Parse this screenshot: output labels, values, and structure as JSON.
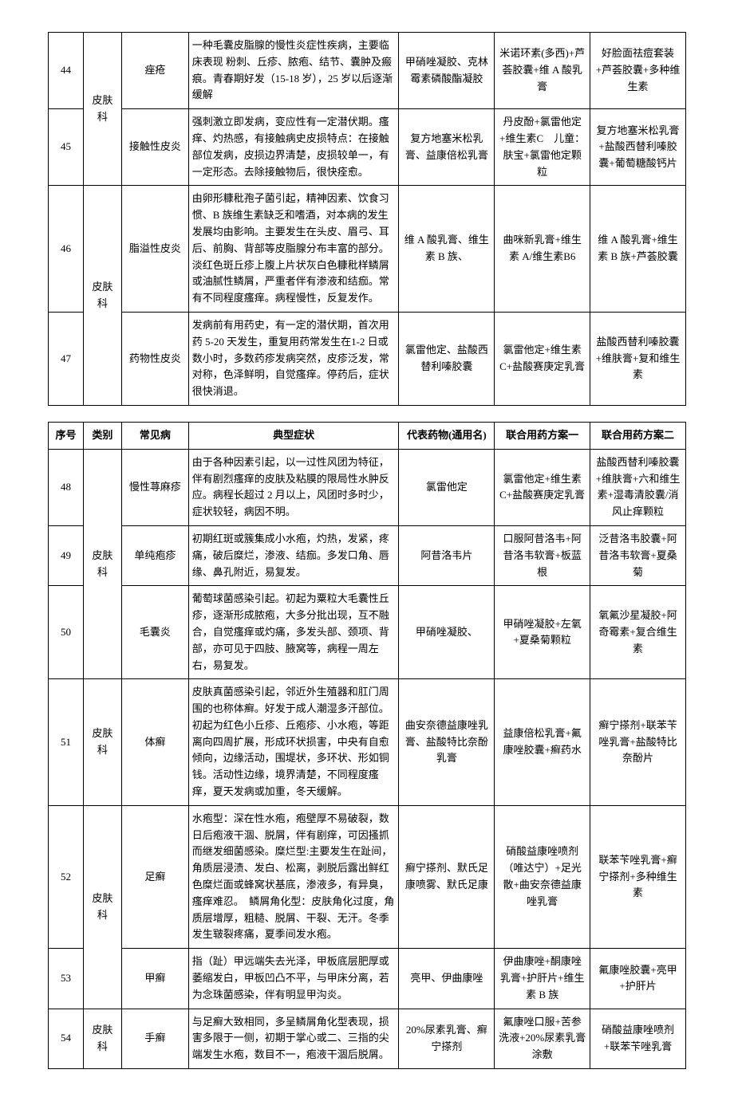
{
  "headers": {
    "num": "序号",
    "cat": "类别",
    "disease": "常见病",
    "symptom": "典型症状",
    "drug": "代表药物(通用名)",
    "plan1": "联合用药方案一",
    "plan2": "联合用药方案二"
  },
  "table1": {
    "category": "皮肤科",
    "category2": "皮肤科",
    "rows": [
      {
        "num": "44",
        "disease": "痤疮",
        "symptom": "一种毛囊皮脂腺的慢性炎症性疾病，主要临床表现 粉刺、丘疹、脓疱、结节、囊肿及瘢痕。青春期好发（15-18 岁），25 岁以后逐渐缓解",
        "drug": "甲硝唑凝胶、克林霉素磷酸酯凝胶",
        "plan1": "米诺环素(多西)+芦荟胶囊+维 A 酸乳膏",
        "plan2": "好脸面祛痘套装+芦荟胶囊+多种维生素"
      },
      {
        "num": "45",
        "disease": "接触性皮炎",
        "symptom": "强刺激立即发病，变应性有一定潜伏期。瘙痒、灼热感，有接触病史皮损特点：在接触部位发病，皮损边界清楚，皮损较单一，有一定形态。去除接触物后，很快痊愈。",
        "drug": "复方地塞米松乳膏、益康倍松乳膏",
        "plan1": "丹皮酚+氯雷他定+维生素C　儿童：肤宝+氯雷他定颗粒",
        "plan2": "复方地塞米松乳膏+盐酸西替利嗪胶囊+葡萄糖酸钙片"
      },
      {
        "num": "46",
        "disease": "脂溢性皮炎",
        "symptom": "由卵形糠秕孢子菌引起，精神因素、饮食习惯、B 族维生素缺乏和嗜酒，对本病的发生发展均由影响。主要发生在头皮、眉弓、耳后、前胸、背部等皮脂腺分布丰富的部分。淡红色斑丘疹上腹上片状灰白色糠秕样鳞屑或油腻性鳞屑，严重者伴有渗液和结痂。常有不同程度瘙痒。病程慢性，反复发作。",
        "drug": "维 A 酸乳膏、维生素 B 族、",
        "plan1": "曲咪新乳膏+维生素 A/维生素B6",
        "plan2": "维 A 酸乳膏+维生素 B 族+芦荟胶囊"
      },
      {
        "num": "47",
        "disease": "药物性皮炎",
        "symptom": "发病前有用药史，有一定的潜伏期，首次用药 5-20 天发生，重复用药常发生在1-2 日或数小时，多数药疹发病突然，皮疹泛发，常对称，色泽鲜明，自觉瘙痒。停药后，症状很快消退。",
        "drug": "氯雷他定、盐酸西替利嗪胶囊",
        "plan1": "氯雷他定+维生素 C+盐酸赛庚定乳膏",
        "plan2": "盐酸西替利嗪胶囊+维肤膏+复和维生素"
      }
    ]
  },
  "table2": {
    "category1": "皮肤科",
    "category2": "皮肤科",
    "category3": "皮肤科",
    "category4": "皮肤科",
    "rows": [
      {
        "num": "48",
        "disease": "慢性荨麻疹",
        "symptom": "由于各种因素引起，以一过性风团为特征，伴有剧烈瘙痒的皮肤及粘膜的限局性水肿反应。病程长超过 2 月以上，风团时多时少，症状较轻，病因不明。",
        "drug": "氯雷他定",
        "plan1": "氯雷他定+维生素C+盐酸赛庚定乳膏",
        "plan2": "盐酸西替利嗪胶囊+维肤膏+六和维生素+湿毒清胶囊/消风止痒颗粒"
      },
      {
        "num": "49",
        "disease": "单纯疱疹",
        "symptom": "初期红斑或簇集成小水疱，灼热，发紧，疼痛，破后糜烂，渗液、结痂。多发口角、唇缘、鼻孔附近，易复发。",
        "drug": "阿昔洛韦片",
        "plan1": "口服阿昔洛韦+阿昔洛韦软膏+板蓝根",
        "plan2": "泛昔洛韦胶囊+阿昔洛韦软膏+夏桑菊"
      },
      {
        "num": "50",
        "disease": "毛囊炎",
        "symptom": "葡萄球菌感染引起。初起为粟粒大毛囊性丘疹，逐渐形成脓疱，大多分批出现，互不融合，自觉瘙痒或灼痛，多发头部、颈项、背部，亦可见于四肢、腋窝等，病程一周左右，易复发。",
        "drug": "甲硝唑凝胶、",
        "plan1": "甲硝唑凝胶+左氧+夏桑菊颗粒",
        "plan2": "氧氟沙星凝胶+阿奇霉素+复合维生素"
      },
      {
        "num": "51",
        "disease": "体癣",
        "symptom": "皮肤真菌感染引起，邻近外生殖器和肛门周围的也称体癣。好发于成人潮湿多汗部位。初起为红色小丘疹、丘疱疹、小水疱，等距离向四周扩展，形成环状损害，中央有自愈倾向，边缘活动，围堤状，多环状、形如铜钱。活动性边缘，境界清楚，不同程度瘙痒，夏天发病或加重，冬天缓解。",
        "drug": "曲安奈德益康唑乳膏、盐酸特比奈酚乳膏",
        "plan1": "益康倍松乳膏+氟康唑胶囊+癣药水",
        "plan2": "癣宁搽剂+联苯苄唑乳膏+盐酸特比奈酚片"
      },
      {
        "num": "52",
        "disease": "足癣",
        "symptom": "水疱型：深在性水疱，疱壁厚不易破裂，数日后疱液干涸、脱屑，伴有剧痒，可因搔抓而继发细菌感染。糜烂型:主要发生在趾间，角质层浸渍、发白、松离，剥脱后露出鲜红色糜烂面或蜂窝状基底，渗液多，有异臭，瘙痒难忍。　鳞屑角化型：皮肤角化过度，角质层增厚，粗糙、脱屑、干裂、无汗。冬季发生皲裂疼痛，夏季间发水疱。",
        "drug": "癣宁搽剂、默氏足康喷雾、默氏足康",
        "plan1": "硝酸益康唑喷剂（唯达宁）+足光散+曲安奈德益康唑乳膏",
        "plan2": "联苯苄唑乳膏+癣宁搽剂+多种维生素"
      },
      {
        "num": "53",
        "disease": "甲癣",
        "symptom": "指（趾）甲远端失去光泽，甲板底层肥厚或萎缩发白，甲板凹凸不平，与甲床分离，若为念珠菌感染，伴有明显甲沟炎。",
        "drug": "亮甲、伊曲康唑",
        "plan1": "伊曲康唑+酮康唑乳膏+护肝片+维生素 B 族",
        "plan2": "氟康唑胶囊+亮甲+护肝片"
      },
      {
        "num": "54",
        "disease": "手癣",
        "symptom": "与足癣大致相同，多呈鳞屑角化型表现，损害多限于一侧，初期于掌心或二、三指的尖端发生水疱，数目不一，疱液干涸后脱屑。",
        "drug": "20%尿素乳膏、癣宁搽剂",
        "plan1": "氟康唑口服+苦参洗液+20%尿素乳膏涂敷",
        "plan2": "硝酸益康唑喷剂+联苯苄唑乳膏"
      }
    ]
  }
}
